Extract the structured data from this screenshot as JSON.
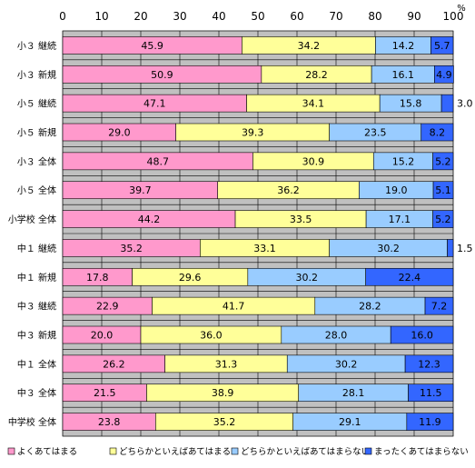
{
  "chart_data": {
    "type": "bar",
    "orientation": "horizontal",
    "stacked": true,
    "unit_label": "%",
    "xlim": [
      0,
      100
    ],
    "x_ticks": [
      "0",
      "10",
      "20",
      "30",
      "40",
      "50",
      "60",
      "70",
      "80",
      "90",
      "100"
    ],
    "grid": true,
    "legend_position": "bottom",
    "categories": [
      "小３ 継続",
      "小３ 新規",
      "小５ 継続",
      "小５ 新規",
      "小３ 全体",
      "小５ 全体",
      "小学校 全体",
      "中１ 継続",
      "中１ 新規",
      "中３ 継続",
      "中３ 新規",
      "中１ 全体",
      "中３ 全体",
      "中学校 全体"
    ],
    "series": [
      {
        "name": "よくあてはまる",
        "color": "#ff99cc",
        "values": [
          45.9,
          50.9,
          47.1,
          29.0,
          48.7,
          39.7,
          44.2,
          35.2,
          17.8,
          22.9,
          20.0,
          26.2,
          21.5,
          23.8
        ],
        "labels": [
          "45.9",
          "50.9",
          "47.1",
          "29.0",
          "48.7",
          "39.7",
          "44.2",
          "35.2",
          "17.8",
          "22.9",
          "20.0",
          "26.2",
          "21.5",
          "23.8"
        ]
      },
      {
        "name": "どちらかといえばあてはまる",
        "color": "#ffff99",
        "values": [
          34.2,
          28.2,
          34.1,
          39.3,
          30.9,
          36.2,
          33.5,
          33.1,
          29.6,
          41.7,
          36.0,
          31.3,
          38.9,
          35.2
        ],
        "labels": [
          "34.2",
          "28.2",
          "34.1",
          "39.3",
          "30.9",
          "36.2",
          "33.5",
          "33.1",
          "29.6",
          "41.7",
          "36.0",
          "31.3",
          "38.9",
          "35.2"
        ]
      },
      {
        "name": "どちらかといえばあてはまらない",
        "color": "#99ccff",
        "values": [
          14.2,
          16.1,
          15.8,
          23.5,
          15.2,
          19.0,
          17.1,
          30.2,
          30.2,
          28.2,
          28.0,
          30.2,
          28.1,
          29.1
        ],
        "labels": [
          "14.2",
          "16.1",
          "15.8",
          "23.5",
          "15.2",
          "19.0",
          "17.1",
          "30.2",
          "30.2",
          "28.2",
          "28.0",
          "30.2",
          "28.1",
          "29.1"
        ]
      },
      {
        "name": "まったくあてはまらない",
        "color": "#3366ff",
        "values": [
          5.7,
          4.9,
          3.0,
          8.2,
          5.2,
          5.1,
          5.2,
          1.5,
          22.4,
          7.2,
          16.0,
          12.3,
          11.5,
          11.9
        ],
        "labels": [
          "5.7",
          "4.9",
          "3.0",
          "8.2",
          "5.2",
          "5.1",
          "5.2",
          "1.5",
          "22.4",
          "7.2",
          "16.0",
          "12.3",
          "11.5",
          "11.9"
        ]
      }
    ]
  }
}
